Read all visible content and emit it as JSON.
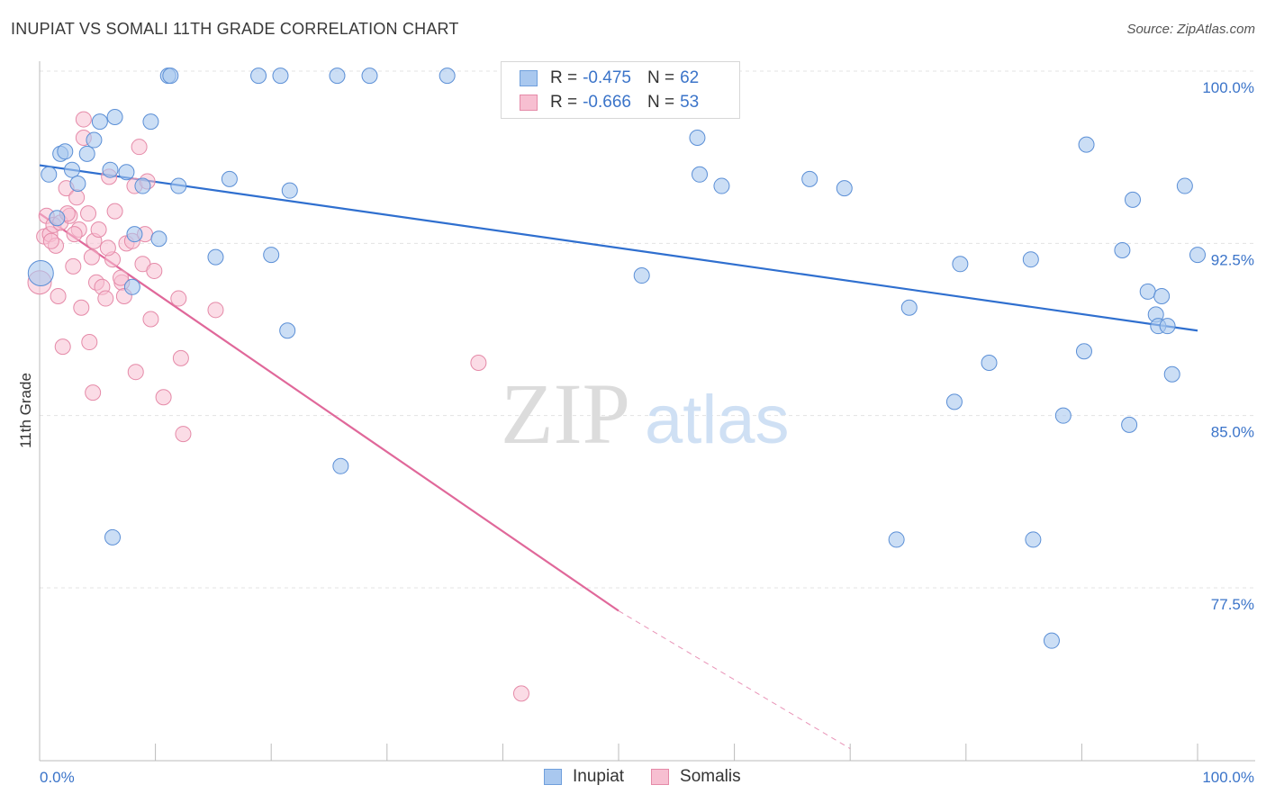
{
  "header": {
    "title": "INUPIAT VS SOMALI 11TH GRADE CORRELATION CHART",
    "source": "Source: ZipAtlas.com"
  },
  "watermark": {
    "zip": "ZIP",
    "atlas": "atlas"
  },
  "legend": {
    "rows": [
      {
        "r_label": "R = ",
        "r_value": "-0.475",
        "n_label": "N = ",
        "n_value": "62",
        "color": "#a9c8ef",
        "border": "#6f9fdc"
      },
      {
        "r_label": "R = ",
        "r_value": "-0.666",
        "n_label": "N = ",
        "n_value": "53",
        "color": "#f7bfd1",
        "border": "#e58aa8"
      }
    ]
  },
  "bottom_legend": {
    "items": [
      "Inupiat",
      "Somalis"
    ]
  },
  "colors": {
    "inupiat_fill": "#a9c8ef",
    "inupiat_stroke": "#5b8fd6",
    "inupiat_line": "#2f6fcf",
    "somalis_fill": "#f7bfd1",
    "somalis_stroke": "#e58aa8",
    "somalis_line": "#e0689a",
    "tick_label": "#3b74c9",
    "grid": "#e3e3e3"
  },
  "chart_data": {
    "type": "scatter",
    "title": "INUPIAT VS SOMALI 11TH GRADE CORRELATION CHART",
    "xlabel": "",
    "ylabel": "11th Grade",
    "xlim": [
      0,
      100
    ],
    "ylim": [
      70.5,
      101.2
    ],
    "x_tick_labels": {
      "left": "0.0%",
      "right": "100.0%"
    },
    "y_ticks": [
      {
        "value": 100.0,
        "label": "100.0%"
      },
      {
        "value": 92.5,
        "label": "92.5%"
      },
      {
        "value": 85.0,
        "label": "85.0%"
      },
      {
        "value": 77.5,
        "label": "77.5%"
      }
    ],
    "grid": true,
    "legend_position": "top-center",
    "series": [
      {
        "name": "Inupiat",
        "r": -0.475,
        "n": 62,
        "trend": {
          "x0": 0,
          "y0": 95.9,
          "x1": 100,
          "y1": 88.7
        },
        "points": [
          [
            0.1,
            91.2
          ],
          [
            0.8,
            95.5
          ],
          [
            1.5,
            93.6
          ],
          [
            1.8,
            96.4
          ],
          [
            2.2,
            96.5
          ],
          [
            2.8,
            95.7
          ],
          [
            3.3,
            95.1
          ],
          [
            4.1,
            96.4
          ],
          [
            4.7,
            97.0
          ],
          [
            5.2,
            97.8
          ],
          [
            6.1,
            95.7
          ],
          [
            6.5,
            98.0
          ],
          [
            7.5,
            95.6
          ],
          [
            8.0,
            90.6
          ],
          [
            8.2,
            92.9
          ],
          [
            8.9,
            95.0
          ],
          [
            9.6,
            97.8
          ],
          [
            10.3,
            92.7
          ],
          [
            11.1,
            99.8
          ],
          [
            11.3,
            99.8
          ],
          [
            15.2,
            91.9
          ],
          [
            16.4,
            95.3
          ],
          [
            18.9,
            99.8
          ],
          [
            20.0,
            92.0
          ],
          [
            20.8,
            99.8
          ],
          [
            21.4,
            88.7
          ],
          [
            21.6,
            94.8
          ],
          [
            25.7,
            99.8
          ],
          [
            26.0,
            82.8
          ],
          [
            28.5,
            99.8
          ],
          [
            35.2,
            99.8
          ],
          [
            47.3,
            99.8
          ],
          [
            6.3,
            79.7
          ],
          [
            52.0,
            91.1
          ],
          [
            56.8,
            97.1
          ],
          [
            57.0,
            95.5
          ],
          [
            58.9,
            95.0
          ],
          [
            66.5,
            95.3
          ],
          [
            69.5,
            94.9
          ],
          [
            74.0,
            79.6
          ],
          [
            75.1,
            89.7
          ],
          [
            79.0,
            85.6
          ],
          [
            79.5,
            91.6
          ],
          [
            82.0,
            87.3
          ],
          [
            85.6,
            91.8
          ],
          [
            85.8,
            79.6
          ],
          [
            87.4,
            75.2
          ],
          [
            88.4,
            85.0
          ],
          [
            90.2,
            87.8
          ],
          [
            90.4,
            96.8
          ],
          [
            93.5,
            92.2
          ],
          [
            94.1,
            84.6
          ],
          [
            94.4,
            94.4
          ],
          [
            95.7,
            90.4
          ],
          [
            96.4,
            89.4
          ],
          [
            96.6,
            88.9
          ],
          [
            96.9,
            90.2
          ],
          [
            97.4,
            88.9
          ],
          [
            97.8,
            86.8
          ],
          [
            98.9,
            95.0
          ],
          [
            100.0,
            92.0
          ],
          [
            12.0,
            95.0
          ]
        ]
      },
      {
        "name": "Somalis",
        "r": -0.666,
        "n": 53,
        "trend": {
          "x0": 0,
          "y0": 93.8,
          "x1": 50,
          "y1": 76.5,
          "dash_x1": 70,
          "dash_y1": 70.5
        },
        "points": [
          [
            0.0,
            90.8
          ],
          [
            0.4,
            92.8
          ],
          [
            0.6,
            93.7
          ],
          [
            0.9,
            92.9
          ],
          [
            1.2,
            93.3
          ],
          [
            1.4,
            92.4
          ],
          [
            1.6,
            90.2
          ],
          [
            1.8,
            93.4
          ],
          [
            2.0,
            88.0
          ],
          [
            2.3,
            94.9
          ],
          [
            2.6,
            93.7
          ],
          [
            2.9,
            91.5
          ],
          [
            3.2,
            94.5
          ],
          [
            3.4,
            93.1
          ],
          [
            3.6,
            89.7
          ],
          [
            3.8,
            97.1
          ],
          [
            3.8,
            97.9
          ],
          [
            4.2,
            93.8
          ],
          [
            4.3,
            88.2
          ],
          [
            4.5,
            91.9
          ],
          [
            4.6,
            86.0
          ],
          [
            4.7,
            92.6
          ],
          [
            4.9,
            90.8
          ],
          [
            5.1,
            93.1
          ],
          [
            5.4,
            90.6
          ],
          [
            5.7,
            90.1
          ],
          [
            6.0,
            95.4
          ],
          [
            6.3,
            91.8
          ],
          [
            6.5,
            93.9
          ],
          [
            7.1,
            90.8
          ],
          [
            7.3,
            90.2
          ],
          [
            7.5,
            92.5
          ],
          [
            8.0,
            92.6
          ],
          [
            8.2,
            95.0
          ],
          [
            8.3,
            86.9
          ],
          [
            8.6,
            96.7
          ],
          [
            8.9,
            91.6
          ],
          [
            9.1,
            92.9
          ],
          [
            9.3,
            95.2
          ],
          [
            9.6,
            89.2
          ],
          [
            9.9,
            91.3
          ],
          [
            10.7,
            85.8
          ],
          [
            12.0,
            90.1
          ],
          [
            12.2,
            87.5
          ],
          [
            12.4,
            84.2
          ],
          [
            15.2,
            89.6
          ],
          [
            37.9,
            87.3
          ],
          [
            41.6,
            72.9
          ],
          [
            2.4,
            93.8
          ],
          [
            5.9,
            92.3
          ],
          [
            3.0,
            92.9
          ],
          [
            1.0,
            92.6
          ],
          [
            7.0,
            91.0
          ]
        ]
      }
    ]
  }
}
